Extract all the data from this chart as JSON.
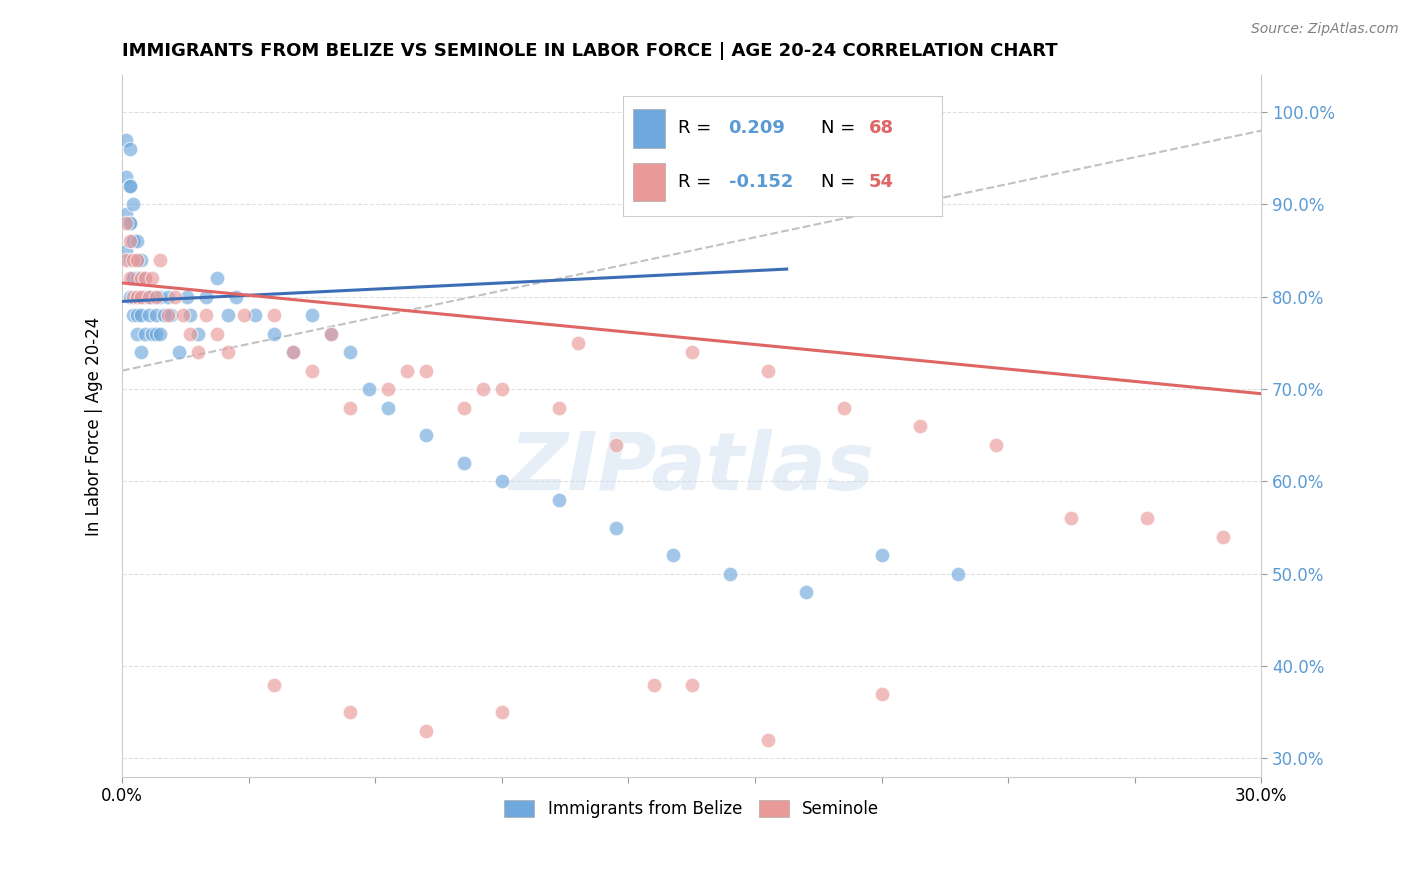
{
  "title": "IMMIGRANTS FROM BELIZE VS SEMINOLE IN LABOR FORCE | AGE 20-24 CORRELATION CHART",
  "source_text": "Source: ZipAtlas.com",
  "xlabel": "",
  "ylabel": "In Labor Force | Age 20-24",
  "legend_labels": [
    "Immigrants from Belize",
    "Seminole"
  ],
  "r_belize": 0.209,
  "n_belize": 68,
  "r_seminole": -0.152,
  "n_seminole": 54,
  "xlim": [
    0.0,
    0.3
  ],
  "ylim": [
    0.28,
    1.04
  ],
  "xtick_positions": [
    0.0,
    0.03333,
    0.06667,
    0.1,
    0.13333,
    0.16667,
    0.2,
    0.23333,
    0.26667,
    0.3
  ],
  "xtick_labels_show": [
    "0.0%",
    "",
    "",
    "",
    "",
    "",
    "",
    "",
    "",
    "30.0%"
  ],
  "ytick_positions": [
    0.3,
    0.4,
    0.5,
    0.6,
    0.7,
    0.8,
    0.9,
    1.0
  ],
  "ytick_labels": [
    "30.0%",
    "40.0%",
    "50.0%",
    "60.0%",
    "70.0%",
    "80.0%",
    "90.0%",
    "100.0%"
  ],
  "color_belize": "#6fa8dc",
  "color_seminole": "#ea9999",
  "color_belize_line": "#3d6eb5",
  "color_seminole_line": "#e06666",
  "color_gray_dashed": "#bbbbbb",
  "color_ytick": "#5b9bd5",
  "background_color": "#ffffff",
  "watermark_text": "ZIPatlas",
  "belize_x": [
    0.001,
    0.001,
    0.001,
    0.001,
    0.002,
    0.002,
    0.002,
    0.002,
    0.002,
    0.002,
    0.002,
    0.003,
    0.003,
    0.003,
    0.003,
    0.003,
    0.003,
    0.004,
    0.004,
    0.004,
    0.004,
    0.004,
    0.004,
    0.005,
    0.005,
    0.005,
    0.005,
    0.005,
    0.006,
    0.006,
    0.006,
    0.007,
    0.007,
    0.008,
    0.008,
    0.009,
    0.009,
    0.01,
    0.01,
    0.011,
    0.012,
    0.013,
    0.015,
    0.017,
    0.018,
    0.02,
    0.022,
    0.025,
    0.028,
    0.03,
    0.035,
    0.04,
    0.045,
    0.05,
    0.055,
    0.06,
    0.065,
    0.07,
    0.08,
    0.09,
    0.1,
    0.115,
    0.13,
    0.145,
    0.16,
    0.18,
    0.2,
    0.22
  ],
  "belize_y": [
    0.97,
    0.93,
    0.89,
    0.85,
    0.96,
    0.92,
    0.88,
    0.84,
    0.8,
    0.88,
    0.92,
    0.86,
    0.9,
    0.82,
    0.86,
    0.78,
    0.82,
    0.84,
    0.8,
    0.86,
    0.78,
    0.82,
    0.76,
    0.8,
    0.84,
    0.78,
    0.82,
    0.74,
    0.8,
    0.76,
    0.82,
    0.78,
    0.8,
    0.76,
    0.8,
    0.76,
    0.78,
    0.8,
    0.76,
    0.78,
    0.8,
    0.78,
    0.74,
    0.8,
    0.78,
    0.76,
    0.8,
    0.82,
    0.78,
    0.8,
    0.78,
    0.76,
    0.74,
    0.78,
    0.76,
    0.74,
    0.7,
    0.68,
    0.65,
    0.62,
    0.6,
    0.58,
    0.55,
    0.52,
    0.5,
    0.48,
    0.52,
    0.5
  ],
  "seminole_x": [
    0.001,
    0.001,
    0.002,
    0.002,
    0.003,
    0.003,
    0.004,
    0.004,
    0.005,
    0.005,
    0.006,
    0.007,
    0.008,
    0.009,
    0.01,
    0.012,
    0.014,
    0.016,
    0.018,
    0.02,
    0.022,
    0.025,
    0.028,
    0.032,
    0.04,
    0.045,
    0.05,
    0.06,
    0.07,
    0.08,
    0.09,
    0.1,
    0.115,
    0.13,
    0.15,
    0.17,
    0.19,
    0.21,
    0.23,
    0.25,
    0.27,
    0.29,
    0.04,
    0.06,
    0.08,
    0.1,
    0.14,
    0.17,
    0.055,
    0.075,
    0.095,
    0.12,
    0.15,
    0.2
  ],
  "seminole_y": [
    0.84,
    0.88,
    0.82,
    0.86,
    0.8,
    0.84,
    0.84,
    0.8,
    0.82,
    0.8,
    0.82,
    0.8,
    0.82,
    0.8,
    0.84,
    0.78,
    0.8,
    0.78,
    0.76,
    0.74,
    0.78,
    0.76,
    0.74,
    0.78,
    0.78,
    0.74,
    0.72,
    0.68,
    0.7,
    0.72,
    0.68,
    0.7,
    0.68,
    0.64,
    0.74,
    0.72,
    0.68,
    0.66,
    0.64,
    0.56,
    0.56,
    0.54,
    0.38,
    0.35,
    0.33,
    0.35,
    0.38,
    0.32,
    0.76,
    0.72,
    0.7,
    0.75,
    0.38,
    0.37
  ],
  "gray_line_x": [
    0.0,
    0.3
  ],
  "gray_line_y": [
    0.72,
    0.98
  ],
  "blue_line_x": [
    0.0,
    0.175
  ],
  "blue_line_y": [
    0.795,
    0.83
  ],
  "pink_line_x": [
    0.0,
    0.3
  ],
  "pink_line_y": [
    0.815,
    0.695
  ]
}
